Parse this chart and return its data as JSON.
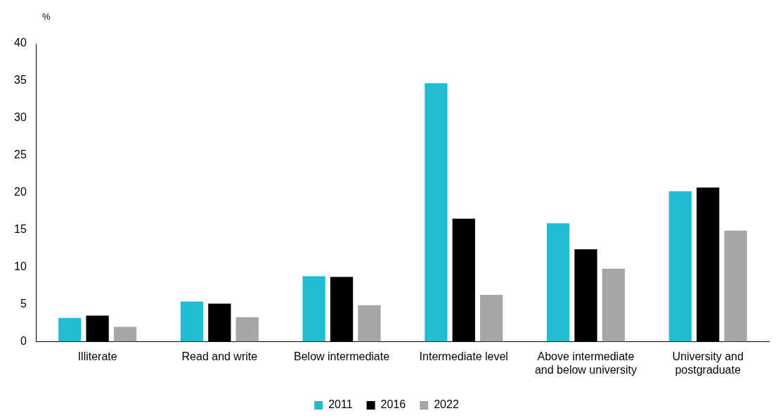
{
  "chart_data": {
    "type": "bar",
    "ylabel": "%",
    "categories": [
      "Illiterate",
      "Read and write",
      "Below intermediate",
      "Intermediate level",
      "Above intermediate and below university",
      "University and postgraduate"
    ],
    "series": [
      {
        "name": "2011",
        "color": "#20bcd2",
        "values": [
          3.2,
          5.4,
          8.8,
          34.7,
          15.9,
          20.2
        ]
      },
      {
        "name": "2016",
        "color": "#000000",
        "values": [
          3.5,
          5.1,
          8.7,
          16.5,
          12.4,
          20.7
        ]
      },
      {
        "name": "2022",
        "color": "#a6a6a6",
        "values": [
          2.0,
          3.3,
          4.9,
          6.3,
          9.8,
          14.9
        ]
      }
    ],
    "ylim": [
      0,
      40
    ],
    "yticks": [
      0,
      5,
      10,
      15,
      20,
      25,
      30,
      35,
      40
    ],
    "grid": false,
    "legend": "bottom"
  }
}
